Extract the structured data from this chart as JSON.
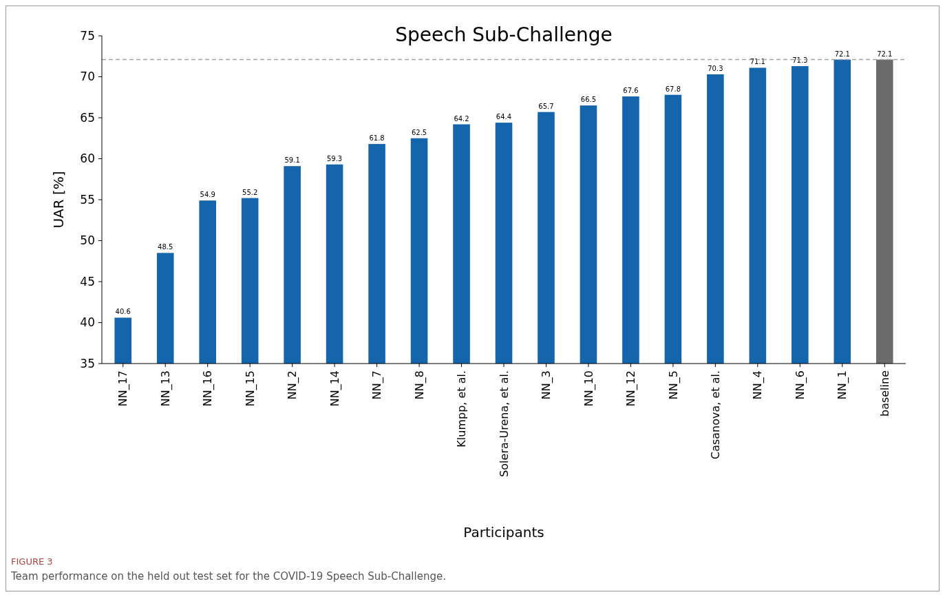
{
  "chart_data": {
    "type": "bar",
    "title": "Speech Sub-Challenge",
    "xlabel": "Participants",
    "ylabel": "UAR [%]",
    "categories": [
      "NN_17",
      "NN_13",
      "NN_16",
      "NN_15",
      "NN_2",
      "NN_14",
      "NN_7",
      "NN_8",
      "Klumpp, et al.",
      "Solera-Urena, et al.",
      "NN_3",
      "NN_10",
      "NN_12",
      "NN_5",
      "Casanova, et al.",
      "NN_4",
      "NN_6",
      "NN_1",
      "baseline"
    ],
    "values": [
      40.6,
      48.5,
      54.9,
      55.2,
      59.1,
      59.3,
      61.8,
      62.5,
      64.2,
      64.4,
      65.7,
      66.5,
      67.6,
      67.8,
      70.3,
      71.1,
      71.3,
      72.1,
      72.1
    ],
    "colors": [
      "#1565ad",
      "#1565ad",
      "#1565ad",
      "#1565ad",
      "#1565ad",
      "#1565ad",
      "#1565ad",
      "#1565ad",
      "#1565ad",
      "#1565ad",
      "#1565ad",
      "#1565ad",
      "#1565ad",
      "#1565ad",
      "#1565ad",
      "#1565ad",
      "#1565ad",
      "#1565ad",
      "#6b6b6b"
    ],
    "data_labels": true,
    "ylim": [
      35,
      75
    ],
    "yticks": [
      35,
      40,
      45,
      50,
      55,
      60,
      65,
      70,
      75
    ],
    "grid": false,
    "ref_lines": [
      {
        "axis": "y",
        "value": 72.1,
        "label": null,
        "color": "#a0a0a0",
        "line_style": "dashed"
      }
    ],
    "annotations": [
      "FIGURE 3",
      "Team performance on the held out test set for the COVID-19 Speech Sub-Challenge."
    ]
  }
}
